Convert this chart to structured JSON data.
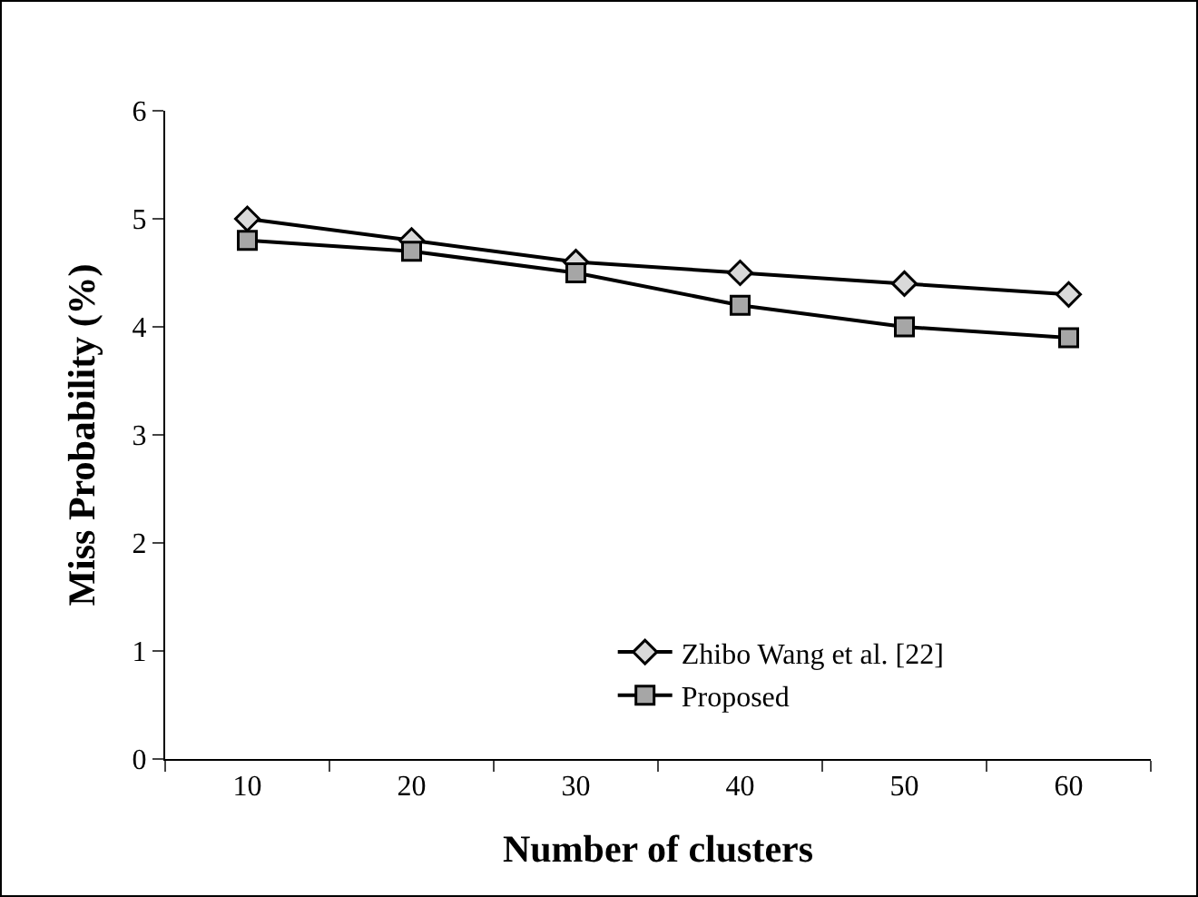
{
  "chart_data": {
    "type": "line",
    "xlabel": "Number of clusters",
    "ylabel": "Miss Probability (%)",
    "categories": [
      "10",
      "20",
      "30",
      "40",
      "50",
      "60"
    ],
    "series": [
      {
        "name": "Zhibo Wang et al. [22]",
        "color": "#000000",
        "marker": "diamond",
        "values": [
          5.0,
          4.8,
          4.6,
          4.5,
          4.4,
          4.3
        ]
      },
      {
        "name": "Proposed",
        "color": "#000000",
        "marker": "square",
        "values": [
          4.8,
          4.7,
          4.5,
          4.2,
          4.0,
          3.9
        ]
      }
    ],
    "ylim": [
      0,
      6
    ],
    "yticks": [
      0,
      1,
      2,
      3,
      4,
      5,
      6
    ],
    "grid": false,
    "legend": "bottom right",
    "line_style": "solid"
  }
}
